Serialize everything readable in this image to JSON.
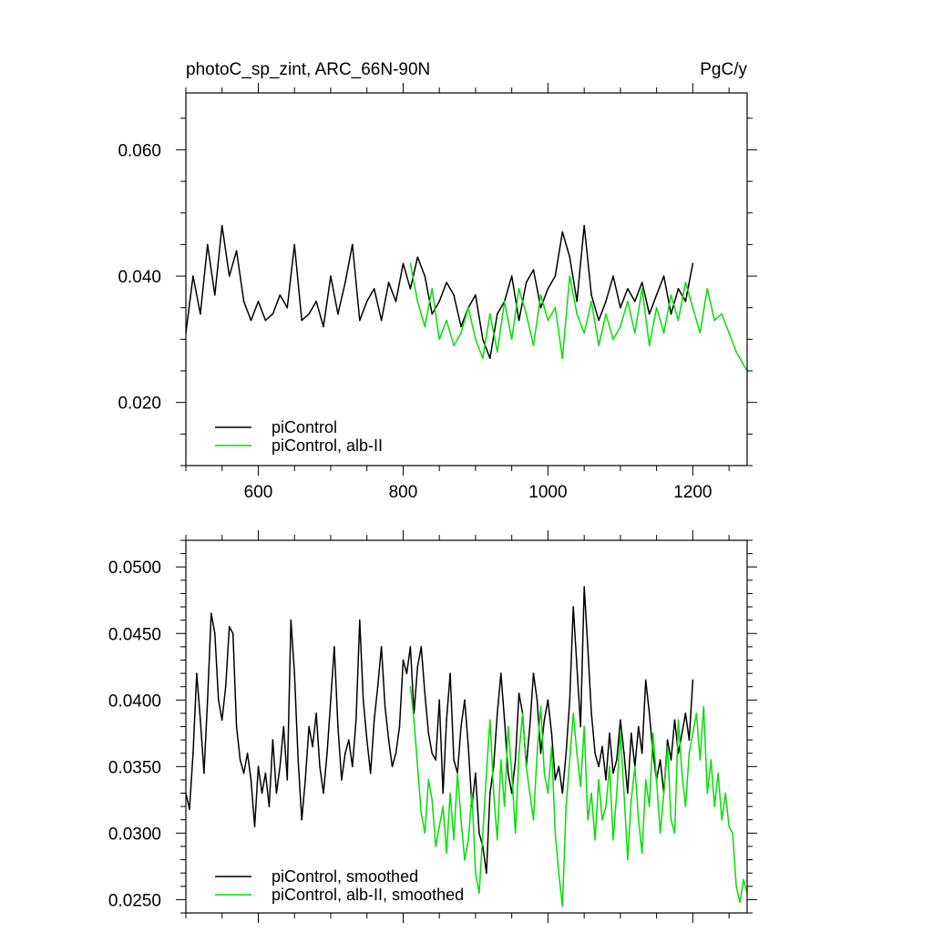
{
  "chart_data": [
    {
      "type": "line",
      "title": "photoC_sp_zint, ARC_66N-90N",
      "units": "PgC/y",
      "xlabel": "",
      "ylabel": "",
      "xlim": [
        500,
        1275
      ],
      "ylim": [
        0.01,
        0.069
      ],
      "xticks": [
        600,
        800,
        1000,
        1200
      ],
      "xtick_labels": [
        "600",
        "800",
        "1000",
        "1200"
      ],
      "yticks": [
        0.02,
        0.04,
        0.06
      ],
      "ytick_labels": [
        "0.020",
        "0.040",
        "0.060"
      ],
      "grid": false,
      "legend_position": "bottom-left",
      "series": [
        {
          "name": "piControl",
          "color": "#000000",
          "x": [
            500,
            510,
            520,
            530,
            540,
            550,
            560,
            570,
            580,
            590,
            600,
            610,
            620,
            630,
            640,
            650,
            660,
            670,
            680,
            690,
            700,
            710,
            720,
            730,
            740,
            750,
            760,
            770,
            780,
            790,
            800,
            810,
            820,
            830,
            840,
            850,
            860,
            870,
            880,
            890,
            900,
            910,
            920,
            930,
            940,
            950,
            960,
            970,
            980,
            990,
            1000,
            1010,
            1020,
            1030,
            1040,
            1050,
            1060,
            1070,
            1080,
            1090,
            1100,
            1110,
            1120,
            1130,
            1140,
            1150,
            1160,
            1170,
            1180,
            1190,
            1200
          ],
          "values": [
            0.031,
            0.04,
            0.034,
            0.045,
            0.037,
            0.048,
            0.04,
            0.044,
            0.036,
            0.033,
            0.036,
            0.033,
            0.034,
            0.037,
            0.035,
            0.045,
            0.033,
            0.034,
            0.036,
            0.032,
            0.04,
            0.034,
            0.039,
            0.045,
            0.033,
            0.036,
            0.038,
            0.033,
            0.039,
            0.036,
            0.042,
            0.038,
            0.043,
            0.04,
            0.034,
            0.036,
            0.039,
            0.037,
            0.032,
            0.035,
            0.037,
            0.03,
            0.027,
            0.034,
            0.036,
            0.04,
            0.033,
            0.039,
            0.041,
            0.035,
            0.038,
            0.04,
            0.047,
            0.043,
            0.036,
            0.048,
            0.037,
            0.033,
            0.036,
            0.04,
            0.035,
            0.038,
            0.036,
            0.039,
            0.034,
            0.037,
            0.04,
            0.034,
            0.038,
            0.036,
            0.042
          ]
        },
        {
          "name": "piControl, alb-II",
          "color": "#00e000",
          "x": [
            810,
            820,
            830,
            840,
            850,
            860,
            870,
            880,
            890,
            900,
            910,
            920,
            930,
            940,
            950,
            960,
            970,
            980,
            990,
            1000,
            1010,
            1020,
            1030,
            1040,
            1050,
            1060,
            1070,
            1080,
            1090,
            1100,
            1110,
            1120,
            1130,
            1140,
            1150,
            1160,
            1170,
            1180,
            1190,
            1200,
            1210,
            1220,
            1230,
            1240,
            1250,
            1260,
            1270,
            1275
          ],
          "values": [
            0.042,
            0.036,
            0.032,
            0.038,
            0.03,
            0.033,
            0.029,
            0.031,
            0.035,
            0.03,
            0.027,
            0.034,
            0.028,
            0.036,
            0.03,
            0.038,
            0.034,
            0.029,
            0.037,
            0.033,
            0.035,
            0.027,
            0.04,
            0.034,
            0.031,
            0.036,
            0.029,
            0.034,
            0.03,
            0.032,
            0.036,
            0.031,
            0.038,
            0.029,
            0.035,
            0.031,
            0.037,
            0.033,
            0.039,
            0.035,
            0.031,
            0.038,
            0.033,
            0.034,
            0.031,
            0.028,
            0.026,
            0.025
          ]
        }
      ]
    },
    {
      "type": "line",
      "title": "",
      "xlabel": "",
      "ylabel": "",
      "xlim": [
        500,
        1275
      ],
      "ylim": [
        0.024,
        0.052
      ],
      "xticks": [
        600,
        800,
        1000,
        1200
      ],
      "yticks": [
        0.025,
        0.03,
        0.035,
        0.04,
        0.045,
        0.05
      ],
      "ytick_labels": [
        "0.0250",
        "0.0300",
        "0.0350",
        "0.0400",
        "0.0450",
        "0.0500"
      ],
      "grid": false,
      "legend_position": "bottom-left",
      "series": [
        {
          "name": "piControl, smoothed",
          "color": "#000000",
          "x": [
            500,
            505,
            510,
            515,
            520,
            525,
            530,
            535,
            540,
            545,
            550,
            555,
            560,
            565,
            570,
            575,
            580,
            585,
            590,
            595,
            600,
            605,
            610,
            615,
            620,
            625,
            630,
            635,
            640,
            645,
            650,
            655,
            660,
            665,
            670,
            675,
            680,
            685,
            690,
            695,
            700,
            705,
            710,
            715,
            720,
            725,
            730,
            735,
            740,
            745,
            750,
            755,
            760,
            765,
            770,
            775,
            780,
            785,
            790,
            795,
            800,
            805,
            810,
            815,
            820,
            825,
            830,
            835,
            840,
            845,
            850,
            855,
            860,
            865,
            870,
            875,
            880,
            885,
            890,
            895,
            900,
            905,
            910,
            915,
            920,
            925,
            930,
            935,
            940,
            945,
            950,
            955,
            960,
            965,
            970,
            975,
            980,
            985,
            990,
            995,
            1000,
            1005,
            1010,
            1015,
            1020,
            1025,
            1030,
            1035,
            1040,
            1045,
            1050,
            1055,
            1060,
            1065,
            1070,
            1075,
            1080,
            1085,
            1090,
            1095,
            1100,
            1105,
            1110,
            1115,
            1120,
            1125,
            1130,
            1135,
            1140,
            1145,
            1150,
            1155,
            1160,
            1165,
            1170,
            1175,
            1180,
            1185,
            1190,
            1195,
            1200
          ],
          "values": [
            0.033,
            0.0318,
            0.036,
            0.042,
            0.0385,
            0.0345,
            0.04,
            0.0465,
            0.045,
            0.04,
            0.0385,
            0.041,
            0.0455,
            0.045,
            0.038,
            0.0355,
            0.0345,
            0.036,
            0.034,
            0.0305,
            0.035,
            0.033,
            0.0345,
            0.032,
            0.037,
            0.033,
            0.035,
            0.038,
            0.034,
            0.046,
            0.042,
            0.0355,
            0.031,
            0.034,
            0.038,
            0.0365,
            0.039,
            0.035,
            0.033,
            0.036,
            0.04,
            0.044,
            0.038,
            0.034,
            0.036,
            0.037,
            0.035,
            0.0385,
            0.046,
            0.04,
            0.037,
            0.0345,
            0.0385,
            0.041,
            0.044,
            0.0395,
            0.037,
            0.035,
            0.036,
            0.038,
            0.043,
            0.042,
            0.044,
            0.039,
            0.0425,
            0.044,
            0.0405,
            0.0375,
            0.036,
            0.0355,
            0.04,
            0.033,
            0.0385,
            0.042,
            0.0355,
            0.0345,
            0.038,
            0.04,
            0.0365,
            0.032,
            0.0345,
            0.03,
            0.029,
            0.027,
            0.033,
            0.035,
            0.039,
            0.042,
            0.0385,
            0.0345,
            0.033,
            0.0355,
            0.0405,
            0.039,
            0.035,
            0.038,
            0.042,
            0.04,
            0.036,
            0.0385,
            0.04,
            0.0375,
            0.034,
            0.035,
            0.033,
            0.036,
            0.04,
            0.047,
            0.0425,
            0.038,
            0.0485,
            0.044,
            0.039,
            0.036,
            0.035,
            0.0365,
            0.034,
            0.0375,
            0.0345,
            0.0355,
            0.0385,
            0.036,
            0.033,
            0.0375,
            0.035,
            0.038,
            0.036,
            0.0415,
            0.039,
            0.036,
            0.034,
            0.0355,
            0.033,
            0.037,
            0.0355,
            0.0385,
            0.036,
            0.0375,
            0.039,
            0.037,
            0.0415
          ]
        },
        {
          "name": "piControl, alb-II, smoothed",
          "color": "#00e000",
          "x": [
            810,
            815,
            820,
            825,
            830,
            835,
            840,
            845,
            850,
            855,
            860,
            865,
            870,
            875,
            880,
            885,
            890,
            895,
            900,
            905,
            910,
            915,
            920,
            925,
            930,
            935,
            940,
            945,
            950,
            955,
            960,
            965,
            970,
            975,
            980,
            985,
            990,
            995,
            1000,
            1005,
            1010,
            1015,
            1020,
            1025,
            1030,
            1035,
            1040,
            1045,
            1050,
            1055,
            1060,
            1065,
            1070,
            1075,
            1080,
            1085,
            1090,
            1095,
            1100,
            1105,
            1110,
            1115,
            1120,
            1125,
            1130,
            1135,
            1140,
            1145,
            1150,
            1155,
            1160,
            1165,
            1170,
            1175,
            1180,
            1185,
            1190,
            1195,
            1200,
            1205,
            1210,
            1215,
            1220,
            1225,
            1230,
            1235,
            1240,
            1245,
            1250,
            1255,
            1260,
            1265,
            1270,
            1275
          ],
          "values": [
            0.041,
            0.0385,
            0.035,
            0.0315,
            0.03,
            0.034,
            0.0325,
            0.029,
            0.0305,
            0.032,
            0.0285,
            0.033,
            0.0295,
            0.0345,
            0.031,
            0.028,
            0.0295,
            0.033,
            0.027,
            0.0255,
            0.03,
            0.0345,
            0.0385,
            0.033,
            0.0295,
            0.0355,
            0.032,
            0.038,
            0.0345,
            0.03,
            0.036,
            0.039,
            0.035,
            0.033,
            0.031,
            0.036,
            0.0395,
            0.0345,
            0.033,
            0.0365,
            0.03,
            0.027,
            0.0245,
            0.032,
            0.0355,
            0.039,
            0.036,
            0.0335,
            0.038,
            0.031,
            0.033,
            0.0295,
            0.034,
            0.031,
            0.032,
            0.035,
            0.0295,
            0.033,
            0.0375,
            0.033,
            0.028,
            0.0325,
            0.035,
            0.031,
            0.0285,
            0.034,
            0.032,
            0.0375,
            0.034,
            0.03,
            0.033,
            0.0365,
            0.031,
            0.03,
            0.0385,
            0.0345,
            0.032,
            0.036,
            0.0375,
            0.039,
            0.0355,
            0.0395,
            0.033,
            0.0355,
            0.032,
            0.0345,
            0.031,
            0.033,
            0.0305,
            0.03,
            0.026,
            0.0248,
            0.0265,
            0.0255
          ]
        }
      ]
    }
  ]
}
